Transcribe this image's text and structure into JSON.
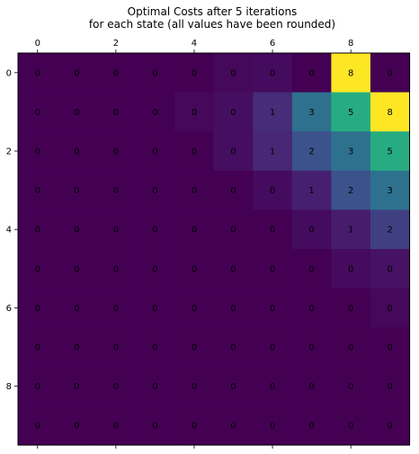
{
  "chart_data": {
    "type": "heatmap",
    "title": [
      "Optimal Costs after 5 iterations",
      "for each state (all values have been rounded)"
    ],
    "colormap": "viridis",
    "vmin": 0,
    "vmax": 8,
    "x_ticks": [
      0,
      2,
      4,
      6,
      8
    ],
    "y_ticks": [
      0,
      2,
      4,
      6,
      8
    ],
    "rows": 10,
    "cols": 10,
    "values": [
      [
        0,
        0,
        0,
        0,
        0,
        0,
        0,
        0,
        8,
        0
      ],
      [
        0,
        0,
        0,
        0,
        0,
        0,
        1,
        3,
        5,
        8
      ],
      [
        0,
        0,
        0,
        0,
        0,
        0,
        1,
        2,
        3,
        5
      ],
      [
        0,
        0,
        0,
        0,
        0,
        0,
        0,
        1,
        2,
        3
      ],
      [
        0,
        0,
        0,
        0,
        0,
        0,
        0,
        0,
        1,
        2
      ],
      [
        0,
        0,
        0,
        0,
        0,
        0,
        0,
        0,
        0,
        0
      ],
      [
        0,
        0,
        0,
        0,
        0,
        0,
        0,
        0,
        0,
        0
      ],
      [
        0,
        0,
        0,
        0,
        0,
        0,
        0,
        0,
        0,
        0
      ],
      [
        0,
        0,
        0,
        0,
        0,
        0,
        0,
        0,
        0,
        0
      ],
      [
        0,
        0,
        0,
        0,
        0,
        0,
        0,
        0,
        0,
        0
      ]
    ],
    "underlying_values": [
      [
        0.0,
        0.0,
        0.0,
        0.0,
        0.0,
        0.2,
        0.3,
        0.0,
        8.0,
        0.0
      ],
      [
        0.0,
        0.0,
        0.0,
        0.0,
        0.2,
        0.4,
        1.2,
        3.0,
        5.0,
        8.0
      ],
      [
        0.0,
        0.0,
        0.0,
        0.0,
        0.0,
        0.4,
        1.1,
        2.0,
        3.0,
        5.0
      ],
      [
        0.0,
        0.0,
        0.0,
        0.0,
        0.0,
        0.0,
        0.3,
        0.9,
        2.0,
        3.0
      ],
      [
        0.0,
        0.0,
        0.0,
        0.0,
        0.0,
        0.0,
        0.0,
        0.3,
        0.8,
        1.6
      ],
      [
        0.0,
        0.0,
        0.0,
        0.0,
        0.0,
        0.0,
        0.0,
        0.0,
        0.3,
        0.5
      ],
      [
        0.0,
        0.0,
        0.0,
        0.0,
        0.0,
        0.0,
        0.0,
        0.0,
        0.0,
        0.2
      ],
      [
        0.0,
        0.0,
        0.0,
        0.0,
        0.0,
        0.0,
        0.0,
        0.0,
        0.0,
        0.0
      ],
      [
        0.0,
        0.0,
        0.0,
        0.0,
        0.0,
        0.0,
        0.0,
        0.0,
        0.0,
        0.0
      ],
      [
        0.0,
        0.0,
        0.0,
        0.0,
        0.0,
        0.0,
        0.0,
        0.0,
        0.0,
        0.0
      ]
    ]
  }
}
